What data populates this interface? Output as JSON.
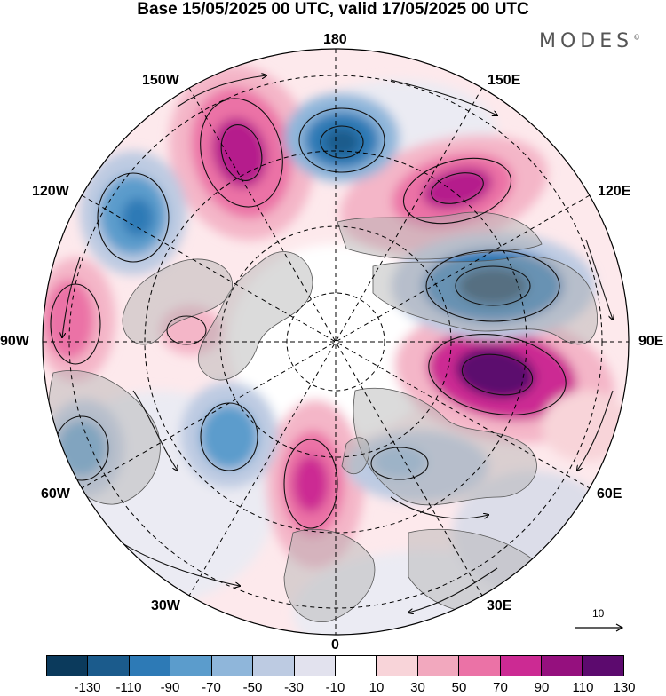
{
  "title": "Base 15/05/2025 00 UTC, valid 17/05/2025 00 UTC",
  "brand": "MODES",
  "brand_mark": "©",
  "longitude_labels": {
    "top": "180",
    "bottom": "0",
    "left": "90W",
    "right": "90E",
    "upper_left_1": "150W",
    "upper_left_2": "120W",
    "lower_left_1": "60W",
    "lower_left_2": "30W",
    "upper_right_1": "150E",
    "upper_right_2": "120E",
    "lower_right_1": "60E",
    "lower_right_2": "30E"
  },
  "reference_vector": "10",
  "colorbar": {
    "colors": [
      "#0b3a5c",
      "#1b5b8c",
      "#2d7ab6",
      "#5b9ccc",
      "#8fb6da",
      "#bdcbe2",
      "#e2e2ee",
      "#ffffff",
      "#f8d4d9",
      "#f2a8be",
      "#eb72a6",
      "#cc2a93",
      "#95107e",
      "#5c0a6e"
    ],
    "tick_labels": [
      "-130",
      "-110",
      "-90",
      "-70",
      "-50",
      "-30",
      "-10",
      "10",
      "30",
      "50",
      "70",
      "90",
      "110",
      "130"
    ]
  },
  "colors": {
    "land": "#a9a9a9",
    "coast": "#555555",
    "grid": "#000000"
  }
}
